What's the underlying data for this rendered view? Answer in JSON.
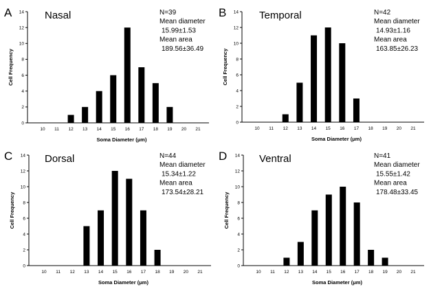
{
  "chart_data": [
    {
      "type": "bar",
      "panel": "A",
      "title": "Nasal",
      "stats": [
        "N=39",
        "Mean diameter",
        "15.99±1.53",
        "Mean area",
        "189.56±36.49"
      ],
      "xlabel": "Soma Diameter (μm)",
      "ylabel": "Cell Frequency",
      "categories": [
        "10",
        "11",
        "12",
        "13",
        "14",
        "15",
        "16",
        "17",
        "18",
        "19",
        "20",
        "21"
      ],
      "values": [
        0,
        0,
        1,
        2,
        4,
        6,
        12,
        7,
        5,
        2,
        0,
        0
      ],
      "yticks": [
        "0",
        "2",
        "4",
        "6",
        "8",
        "10",
        "12",
        "14"
      ],
      "ylim": [
        0,
        14
      ]
    },
    {
      "type": "bar",
      "panel": "B",
      "title": "Temporal",
      "stats": [
        "N=42",
        "Mean diameter",
        "14.93±1.16",
        "Mean area",
        "163.85±26.23"
      ],
      "xlabel": "Soma Diameter (μm)",
      "ylabel": "Cell Frequency",
      "categories": [
        "10",
        "11",
        "12",
        "13",
        "14",
        "15",
        "16",
        "17",
        "18",
        "19",
        "20",
        "21"
      ],
      "values": [
        0,
        0,
        1,
        5,
        11,
        12,
        10,
        3,
        0,
        0,
        0,
        0
      ],
      "yticks": [
        "0",
        "2",
        "4",
        "6",
        "8",
        "10",
        "12",
        "14"
      ],
      "ylim": [
        0,
        14
      ]
    },
    {
      "type": "bar",
      "panel": "C",
      "title": "Dorsal",
      "stats": [
        "N=44",
        "Mean diameter",
        "15.34±1.22",
        "Mean area",
        "173.54±28.21"
      ],
      "xlabel": "Soma Diameter (μm)",
      "ylabel": "Cell Frequency",
      "categories": [
        "10",
        "11",
        "12",
        "13",
        "14",
        "15",
        "16",
        "17",
        "18",
        "19",
        "20",
        "21"
      ],
      "values": [
        0,
        0,
        0,
        5,
        7,
        12,
        11,
        7,
        2,
        0,
        0,
        0
      ],
      "yticks": [
        "0",
        "2",
        "4",
        "6",
        "8",
        "10",
        "12",
        "14"
      ],
      "ylim": [
        0,
        14
      ]
    },
    {
      "type": "bar",
      "panel": "D",
      "title": "Ventral",
      "stats": [
        "N=41",
        "Mean diameter",
        "15.55±1.42",
        "Mean area",
        "178.48±33.45"
      ],
      "xlabel": "Soma Diameter (μm)",
      "ylabel": "Cell Frequency",
      "categories": [
        "10",
        "11",
        "12",
        "13",
        "14",
        "15",
        "16",
        "17",
        "18",
        "19",
        "20",
        "21"
      ],
      "values": [
        0,
        0,
        1,
        3,
        7,
        9,
        10,
        8,
        2,
        1,
        0,
        0
      ],
      "yticks": [
        "0",
        "2",
        "4",
        "6",
        "8",
        "10",
        "12",
        "14"
      ],
      "ylim": [
        0,
        14
      ]
    }
  ]
}
